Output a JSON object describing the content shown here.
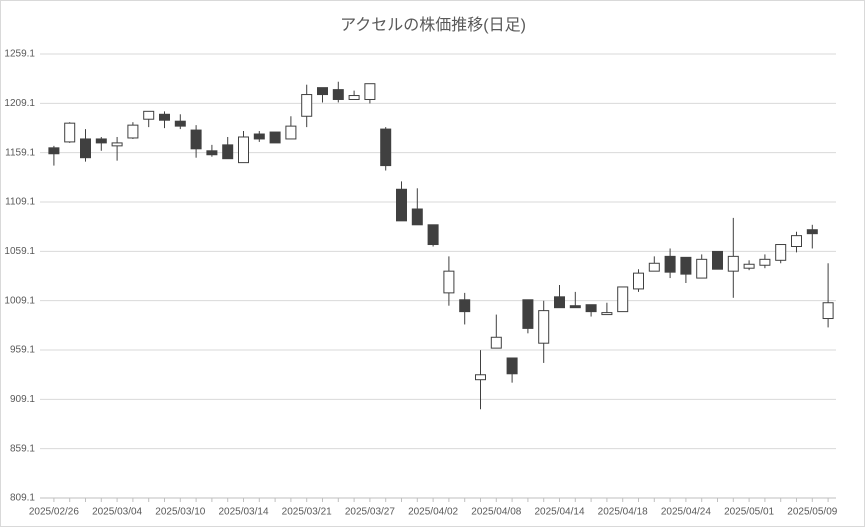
{
  "chart_data": {
    "type": "candlestick",
    "title": "アクセルの株価推移(日足)",
    "categories": [
      "2025/02/26",
      null,
      null,
      null,
      "2025/03/04",
      null,
      null,
      null,
      "2025/03/10",
      null,
      null,
      null,
      "2025/03/14",
      null,
      null,
      null,
      "2025/03/21",
      null,
      null,
      null,
      "2025/03/27",
      null,
      null,
      null,
      "2025/04/02",
      null,
      null,
      null,
      "2025/04/08",
      null,
      null,
      null,
      "2025/04/14",
      null,
      null,
      null,
      "2025/04/18",
      null,
      null,
      null,
      "2025/04/24",
      null,
      null,
      null,
      "2025/05/01",
      null,
      null,
      null,
      "2025/05/09",
      null
    ],
    "open": [
      1164,
      1170,
      1173,
      1173,
      1166,
      1174,
      1193,
      1198,
      1191,
      1182,
      1161,
      1167,
      1149,
      1178,
      1180,
      1173,
      1196,
      1225,
      1223,
      1213,
      1213,
      1183,
      1122,
      1102,
      1086,
      1017,
      1010,
      929,
      961,
      951,
      1010,
      966,
      1013,
      1004,
      1005,
      995,
      998,
      1021,
      1039,
      1054,
      1053,
      1032,
      1059,
      1039,
      1042,
      1045,
      1050,
      1064,
      1081,
      991
    ],
    "high": [
      1166,
      1190,
      1183,
      1175,
      1175,
      1190,
      1201,
      1201,
      1198,
      1187,
      1167,
      1175,
      1181,
      1181,
      1180,
      1196,
      1228,
      1225,
      1231,
      1222,
      1229,
      1185,
      1130,
      1123,
      1086,
      1054,
      1017,
      959,
      995,
      951,
      1010,
      1009,
      1025,
      1018,
      1005,
      1007,
      1023,
      1041,
      1054,
      1062,
      1053,
      1056,
      1059,
      1093,
      1050,
      1056,
      1066,
      1079,
      1086,
      1047
    ],
    "low": [
      1146,
      1169,
      1150,
      1161,
      1151,
      1173,
      1185,
      1184,
      1183,
      1154,
      1155,
      1153,
      1149,
      1170,
      1169,
      1173,
      1185,
      1210,
      1210,
      1213,
      1209,
      1141,
      1090,
      1086,
      1064,
      1004,
      985,
      899,
      961,
      926,
      976,
      946,
      1002,
      1002,
      993,
      995,
      998,
      1018,
      1039,
      1032,
      1027,
      1032,
      1041,
      1012,
      1040,
      1042,
      1047,
      1058,
      1062,
      982
    ],
    "close": [
      1158,
      1189,
      1154,
      1169,
      1169,
      1187,
      1201,
      1192,
      1186,
      1163,
      1157,
      1153,
      1175,
      1173,
      1169,
      1186,
      1218,
      1218,
      1213,
      1217,
      1229,
      1146,
      1090,
      1086,
      1066,
      1039,
      998,
      934,
      972,
      935,
      981,
      999,
      1002,
      1002,
      998,
      997,
      1023,
      1037,
      1047,
      1038,
      1036,
      1051,
      1041,
      1054,
      1046,
      1051,
      1066,
      1075,
      1077,
      1007
    ],
    "up_color": "#ffffff",
    "down_color": "#404040",
    "edge_color": "#404040",
    "ylim": [
      809.1,
      1259.1
    ],
    "yticks": [
      809.1,
      859.1,
      909.1,
      959.1,
      1009.1,
      1059.1,
      1109.1,
      1159.1,
      1209.1,
      1259.1
    ],
    "grid": true
  }
}
